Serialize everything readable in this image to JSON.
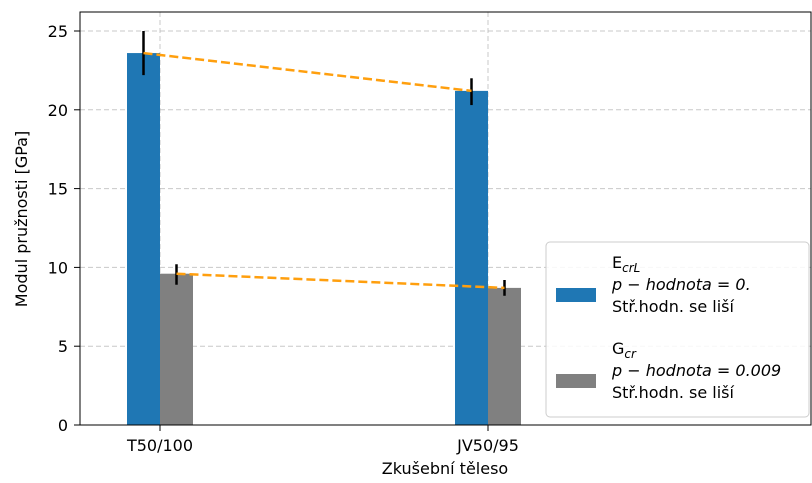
{
  "chart_data": {
    "type": "bar",
    "xlabel": "Zkušební těleso",
    "ylabel": "Modul pružnosti [GPa]",
    "ylim": [
      0,
      26
    ],
    "yticks": [
      "0",
      "5",
      "10",
      "15",
      "20",
      "25"
    ],
    "categories": [
      "T50/100",
      "JV50/95"
    ],
    "grid": true,
    "legend_position": "right",
    "series": [
      {
        "key": "E",
        "legend": {
          "symbol": "E",
          "sub": "crL",
          "pval": "p − hodnota = 0.",
          "note": "Stř.hodn. se liší"
        },
        "color": "#1f77b4",
        "values": [
          23.6,
          21.2
        ],
        "err_low": [
          22.2,
          20.3
        ],
        "err_high": [
          25.0,
          22.0
        ]
      },
      {
        "key": "G",
        "legend": {
          "symbol": "G",
          "sub": "cr",
          "pval": "p − hodnota = 0.009",
          "note": "Stř.hodn. se liší"
        },
        "color": "#808080",
        "values": [
          9.6,
          8.7
        ],
        "err_low": [
          8.9,
          8.2
        ],
        "err_high": [
          10.2,
          9.2
        ]
      }
    ],
    "trend_color": "#ff9f0e"
  }
}
